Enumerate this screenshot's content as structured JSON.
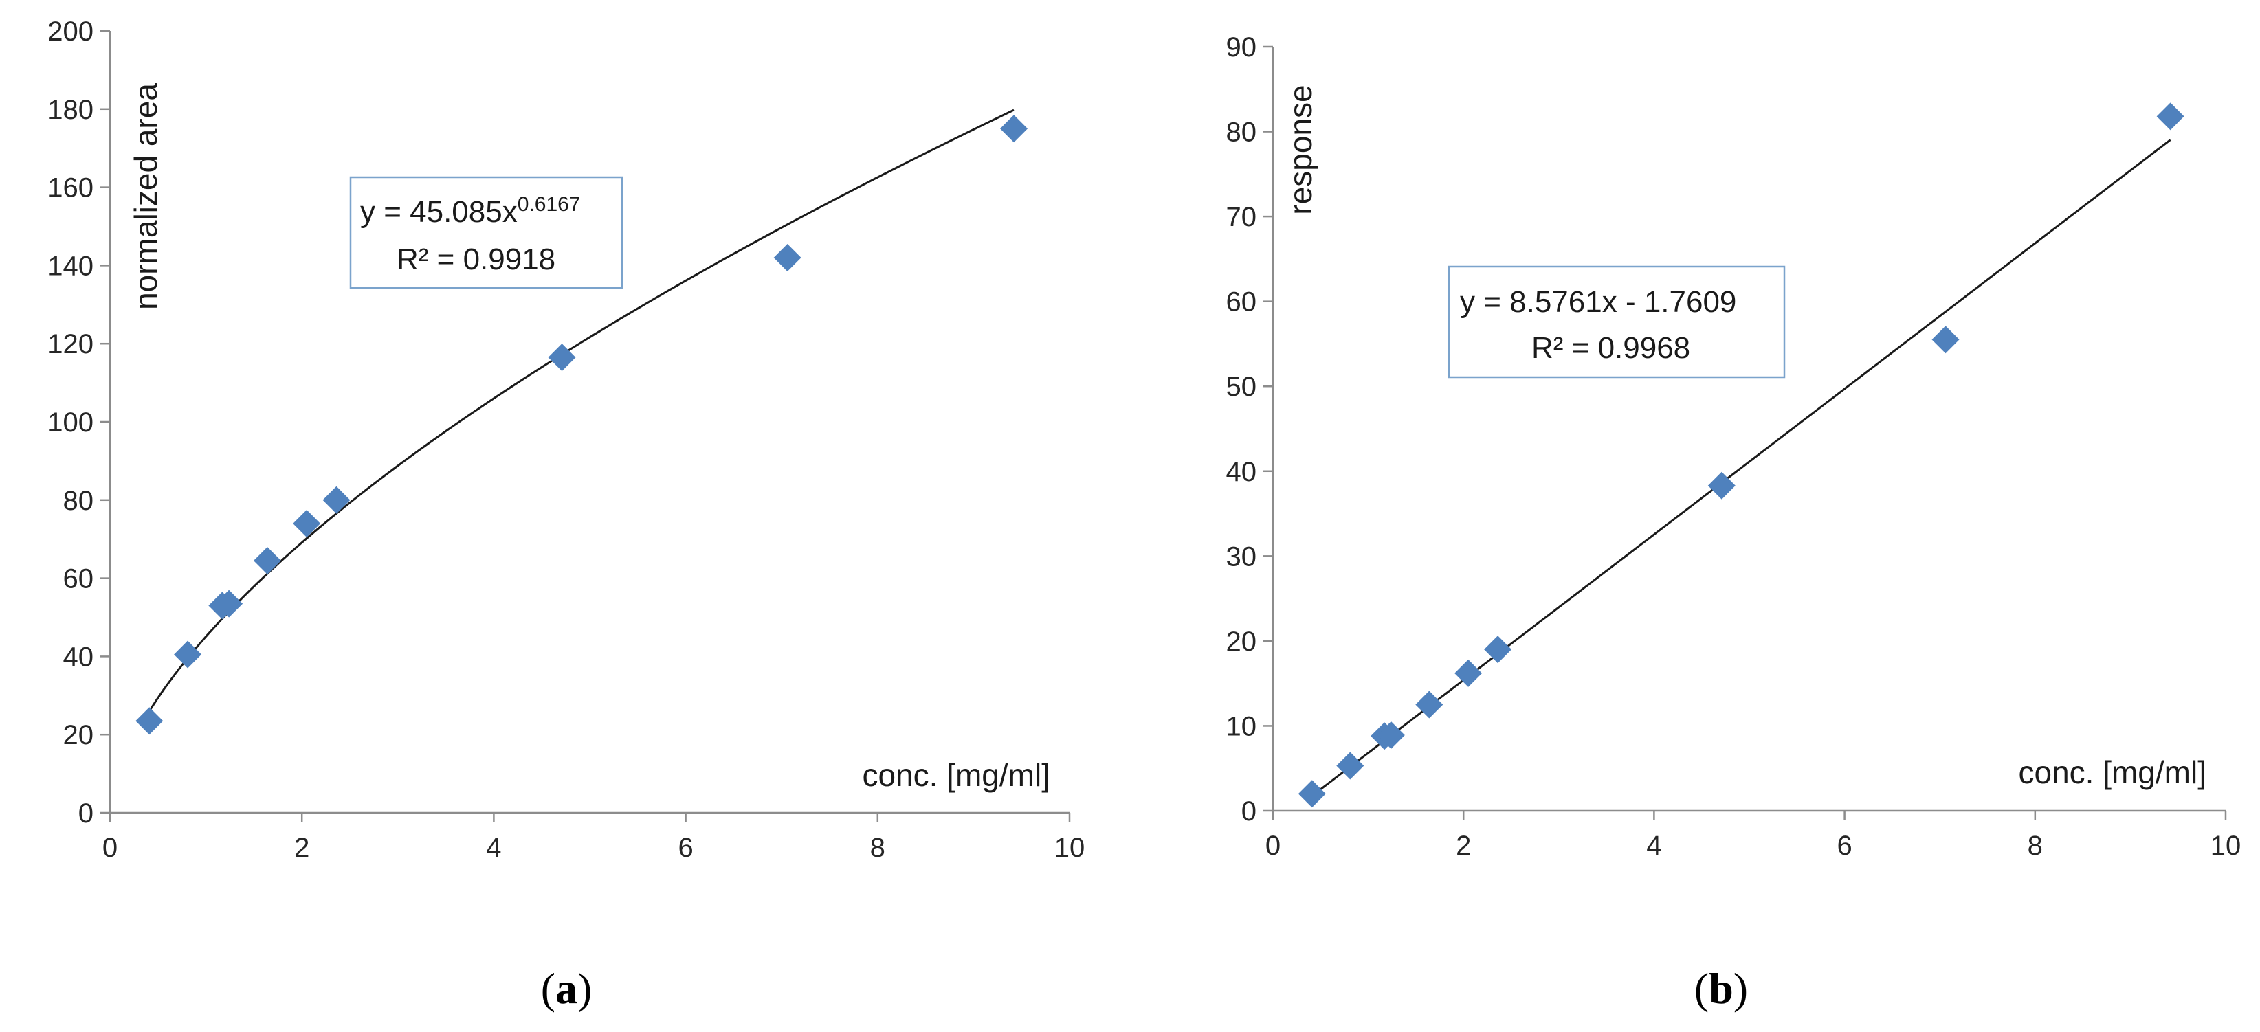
{
  "chart_data": [
    {
      "type": "scatter",
      "panel_label": "a",
      "xlabel": "conc. [mg/ml]",
      "ylabel": "normalized area",
      "xlim": [
        0,
        10
      ],
      "ylim": [
        0,
        200
      ],
      "xticks": [
        0,
        2,
        4,
        6,
        8,
        10
      ],
      "yticks": [
        0,
        20,
        40,
        60,
        80,
        100,
        120,
        140,
        160,
        180,
        200
      ],
      "grid": false,
      "marker_color": "#4f81bd",
      "points": {
        "x": [
          0.41,
          0.81,
          1.17,
          1.24,
          1.64,
          2.05,
          2.36,
          4.71,
          7.06,
          9.42
        ],
        "y": [
          23.5,
          40.5,
          53,
          53.5,
          64.5,
          74,
          80,
          116.5,
          142,
          175
        ]
      },
      "trendline": {
        "kind": "power",
        "a": 45.085,
        "b": 0.6167,
        "x_range": [
          0.41,
          9.42
        ]
      },
      "annotation": {
        "equation_prefix": "y = 45.085x",
        "exponent": "0.6167",
        "r2": "R² = 0.9918"
      }
    },
    {
      "type": "scatter",
      "panel_label": "b",
      "xlabel": "conc. [mg/ml]",
      "ylabel": "response",
      "xlim": [
        0,
        10
      ],
      "ylim": [
        0,
        90
      ],
      "xticks": [
        0,
        2,
        4,
        6,
        8,
        10
      ],
      "yticks": [
        0,
        10,
        20,
        30,
        40,
        50,
        60,
        70,
        80,
        90
      ],
      "grid": false,
      "marker_color": "#4f81bd",
      "points": {
        "x": [
          0.41,
          0.81,
          1.17,
          1.24,
          1.64,
          2.05,
          2.36,
          4.71,
          7.06,
          9.42
        ],
        "y": [
          2,
          5.3,
          8.8,
          8.9,
          12.5,
          16.2,
          19,
          38.3,
          55.5,
          81.8
        ]
      },
      "trendline": {
        "kind": "linear",
        "slope": 8.5761,
        "intercept": -1.7609,
        "x_range": [
          0.41,
          9.42
        ]
      },
      "annotation": {
        "equation": "y = 8.5761x - 1.7609",
        "r2": "R² = 0.9968"
      }
    }
  ]
}
